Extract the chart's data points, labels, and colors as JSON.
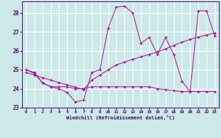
{
  "xlabel": "Windchill (Refroidissement éolien,°C)",
  "background_color": "#cce8e8",
  "grid_color": "#ffffff",
  "line_color": "#aa0088",
  "xlim": [
    -0.5,
    23.5
  ],
  "ylim": [
    23.0,
    28.6
  ],
  "yticks": [
    23,
    24,
    25,
    26,
    27,
    28
  ],
  "xticks": [
    0,
    1,
    2,
    3,
    4,
    5,
    6,
    7,
    8,
    9,
    10,
    11,
    12,
    13,
    14,
    15,
    16,
    17,
    18,
    19,
    20,
    21,
    22,
    23
  ],
  "line1_x": [
    0,
    1,
    2,
    3,
    4,
    5,
    6,
    7,
    8,
    9,
    10,
    11,
    12,
    13,
    14,
    15,
    16,
    17,
    18,
    19,
    20,
    21,
    22,
    23
  ],
  "line1_y": [
    25.0,
    24.8,
    24.3,
    24.1,
    24.0,
    23.8,
    23.3,
    23.4,
    24.85,
    25.0,
    27.2,
    28.3,
    28.35,
    28.0,
    26.4,
    26.7,
    25.8,
    26.7,
    25.8,
    24.4,
    23.85,
    28.1,
    28.1,
    26.8
  ],
  "line2_x": [
    0,
    1,
    2,
    3,
    4,
    5,
    6,
    7,
    8,
    9,
    10,
    11,
    12,
    13,
    14,
    15,
    16,
    17,
    18,
    19,
    20,
    21,
    22,
    23
  ],
  "line2_y": [
    25.0,
    24.85,
    24.3,
    24.1,
    24.1,
    24.1,
    24.0,
    24.0,
    24.1,
    24.1,
    24.1,
    24.1,
    24.1,
    24.1,
    24.1,
    24.1,
    24.0,
    23.95,
    23.9,
    23.85,
    23.85,
    23.85,
    23.85,
    23.85
  ],
  "line3_x": [
    0,
    1,
    2,
    3,
    4,
    5,
    6,
    7,
    8,
    9,
    10,
    11,
    12,
    13,
    14,
    15,
    16,
    17,
    18,
    19,
    20,
    21,
    22,
    23
  ],
  "line3_y": [
    24.85,
    24.72,
    24.58,
    24.45,
    24.32,
    24.2,
    24.08,
    23.95,
    24.45,
    24.72,
    25.0,
    25.25,
    25.4,
    25.55,
    25.68,
    25.8,
    25.93,
    26.1,
    26.28,
    26.45,
    26.6,
    26.72,
    26.83,
    26.93
  ]
}
